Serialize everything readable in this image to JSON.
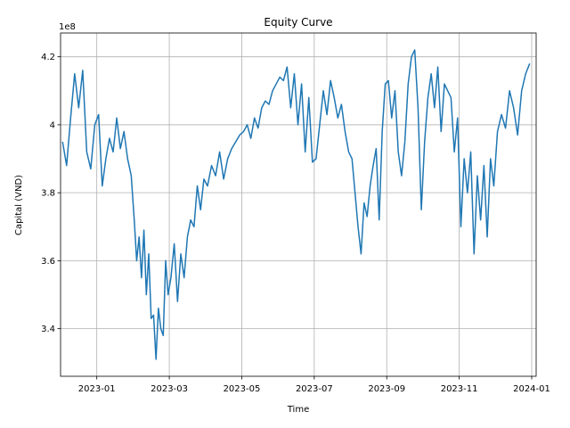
{
  "chart_data": {
    "type": "line",
    "title": "Equity Curve",
    "xlabel": "Time",
    "ylabel": "Capital (VND)",
    "y_offset_label": "1e8",
    "x": [
      "2022-12",
      "2022-12",
      "2022-12",
      "2022-12",
      "2022-12",
      "2022-12",
      "2022-12",
      "2022-12",
      "2022-12",
      "2023-01",
      "2023-01",
      "2023-01",
      "2023-01",
      "2023-01",
      "2023-01",
      "2023-01",
      "2023-01",
      "2023-01",
      "2023-01",
      "2023-02",
      "2023-02",
      "2023-02",
      "2023-02",
      "2023-02",
      "2023-02",
      "2023-02",
      "2023-02",
      "2023-02",
      "2023-02",
      "2023-02",
      "2023-02",
      "2023-02",
      "2023-02",
      "2023-02",
      "2023-03",
      "2023-03",
      "2023-03",
      "2023-03",
      "2023-03",
      "2023-03",
      "2023-03",
      "2023-03",
      "2023-03",
      "2023-03",
      "2023-03",
      "2023-04",
      "2023-04",
      "2023-04",
      "2023-04",
      "2023-04",
      "2023-04",
      "2023-04",
      "2023-04",
      "2023-04",
      "2023-05",
      "2023-05",
      "2023-05",
      "2023-05",
      "2023-05",
      "2023-05",
      "2023-05",
      "2023-05",
      "2023-05",
      "2023-05",
      "2023-06",
      "2023-06",
      "2023-06",
      "2023-06",
      "2023-06",
      "2023-06",
      "2023-06",
      "2023-06",
      "2023-06",
      "2023-06",
      "2023-07",
      "2023-07",
      "2023-07",
      "2023-07",
      "2023-07",
      "2023-07",
      "2023-07",
      "2023-07",
      "2023-07",
      "2023-07",
      "2023-08",
      "2023-08",
      "2023-08",
      "2023-08",
      "2023-08",
      "2023-08",
      "2023-08",
      "2023-08",
      "2023-08",
      "2023-08",
      "2023-08",
      "2023-08",
      "2023-09",
      "2023-09",
      "2023-09",
      "2023-09",
      "2023-09",
      "2023-09",
      "2023-09",
      "2023-09",
      "2023-09",
      "2023-09",
      "2023-09",
      "2023-10",
      "2023-10",
      "2023-10",
      "2023-10",
      "2023-10",
      "2023-10",
      "2023-10",
      "2023-10",
      "2023-10",
      "2023-10",
      "2023-10",
      "2023-11",
      "2023-11",
      "2023-11",
      "2023-11",
      "2023-11",
      "2023-11",
      "2023-11",
      "2023-11",
      "2023-11",
      "2023-11",
      "2023-11",
      "2023-12",
      "2023-12",
      "2023-12",
      "2023-12",
      "2023-12",
      "2023-12",
      "2023-12",
      "2023-12",
      "2023-12"
    ],
    "series": [
      {
        "name": "Capital",
        "color": "#1f77b4",
        "values": [
          3.95,
          3.88,
          4.02,
          4.15,
          4.05,
          4.16,
          3.92,
          3.87,
          4.0,
          4.03,
          3.82,
          3.9,
          3.96,
          3.92,
          4.02,
          3.93,
          3.98,
          3.9,
          3.85,
          3.72,
          3.6,
          3.67,
          3.55,
          3.69,
          3.5,
          3.62,
          3.43,
          3.44,
          3.31,
          3.46,
          3.4,
          3.38,
          3.6,
          3.5,
          3.55,
          3.65,
          3.48,
          3.62,
          3.55,
          3.67,
          3.72,
          3.7,
          3.82,
          3.75,
          3.84,
          3.82,
          3.88,
          3.85,
          3.92,
          3.84,
          3.9,
          3.93,
          3.95,
          3.97,
          3.98,
          4.0,
          3.96,
          4.02,
          3.99,
          4.05,
          4.07,
          4.06,
          4.1,
          4.12,
          4.14,
          4.13,
          4.17,
          4.05,
          4.15,
          4.0,
          4.12,
          3.92,
          4.08,
          3.89,
          3.9,
          4.0,
          4.1,
          4.03,
          4.13,
          4.08,
          4.02,
          4.06,
          3.98,
          3.92,
          3.9,
          3.8,
          3.7,
          3.62,
          3.77,
          3.73,
          3.82,
          3.88,
          3.93,
          3.72,
          3.98,
          4.12,
          4.13,
          4.02,
          4.1,
          3.92,
          3.85,
          3.95,
          4.12,
          4.2,
          4.22,
          4.05,
          3.75,
          3.95,
          4.08,
          4.15,
          4.05,
          4.17,
          3.98,
          4.12,
          4.1,
          4.08,
          3.92,
          4.02,
          3.7,
          3.9,
          3.8,
          3.92,
          3.62,
          3.85,
          3.72,
          3.88,
          3.67,
          3.9,
          3.82,
          3.98,
          4.03,
          3.99,
          4.1,
          4.05,
          3.97,
          4.1,
          4.15,
          4.18
        ]
      }
    ],
    "xlim": [
      "2022-12",
      "2024-01"
    ],
    "xticks": [
      "2023-01",
      "2023-03",
      "2023-05",
      "2023-07",
      "2023-09",
      "2023-11",
      "2024-01"
    ],
    "ylim": [
      3.26,
      4.27
    ],
    "yticks": [
      3.4,
      3.6,
      3.8,
      4.0,
      4.2
    ],
    "grid": true
  }
}
